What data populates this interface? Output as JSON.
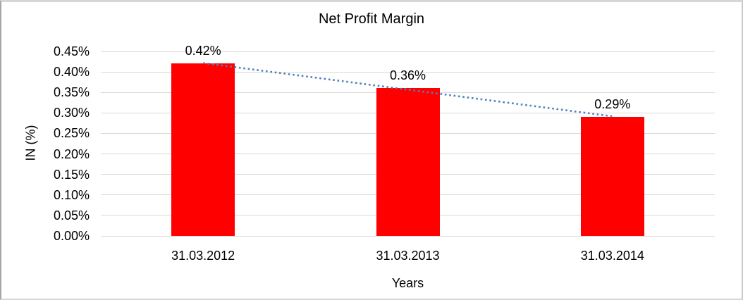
{
  "chart_data": {
    "type": "bar",
    "title": "Net Profit Margin",
    "categories": [
      "31.03.2012",
      "31.03.2013",
      "31.03.2014"
    ],
    "values": [
      0.42,
      0.36,
      0.29
    ],
    "data_labels": [
      "0.42%",
      "0.36%",
      "0.29%"
    ],
    "xlabel": "Years",
    "ylabel": "IN (%)",
    "ylim": [
      0,
      0.45
    ],
    "ytick_step": 0.05,
    "ytick_labels": [
      "0.00%",
      "0.05%",
      "0.10%",
      "0.15%",
      "0.20%",
      "0.25%",
      "0.30%",
      "0.35%",
      "0.40%",
      "0.45%"
    ],
    "grid": true,
    "legend": "none",
    "trendline": {
      "type": "linear",
      "style": "dotted",
      "color": "#4F81BD"
    },
    "colors": {
      "bar": "#FF0000",
      "gridline": "#D9D9D9",
      "text": "#000000",
      "background": "#FFFFFF"
    }
  }
}
